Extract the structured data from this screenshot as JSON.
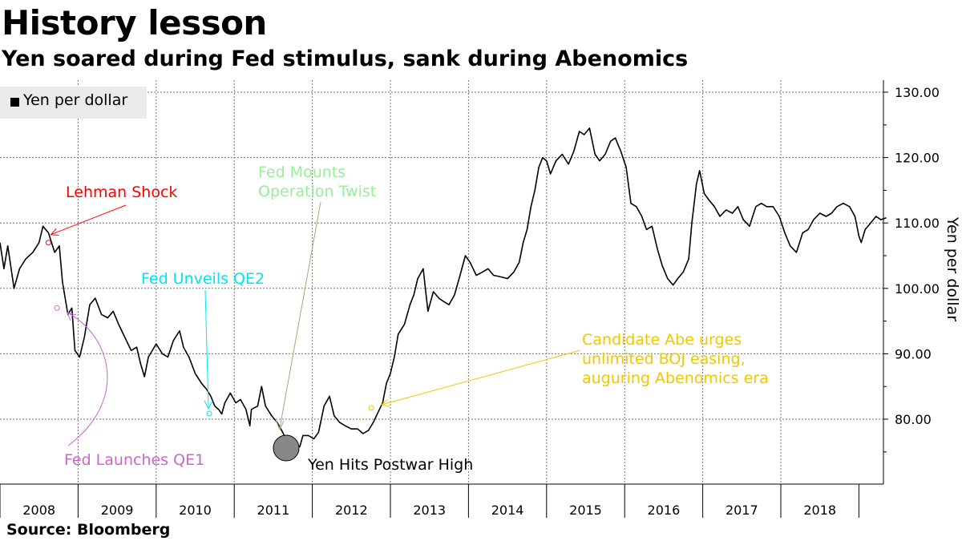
{
  "header": {
    "title": "History lesson",
    "subtitle": "Yen soared during Fed stimulus, sank during Abenomics"
  },
  "footer": {
    "source": "Source: Bloomberg"
  },
  "colors": {
    "line": "#000000",
    "grid": "#777777",
    "lehman": "#ff0000",
    "qe1": "#cc66cc",
    "qe2": "#00e5ee",
    "twist": "#99ee99",
    "twist_arrow": "#a8a878",
    "abe": "#f0c800",
    "postwar_fill": "#888888"
  },
  "chart_data": {
    "type": "line",
    "title": "History lesson",
    "subtitle": "Yen soared during Fed stimulus, sank during Abenomics",
    "ylabel": "Yen per dollar",
    "xlabel": "",
    "ylim": [
      70,
      131
    ],
    "xlim": [
      2008.0,
      2019.35
    ],
    "yticks": [
      80,
      90,
      100,
      110,
      120,
      130
    ],
    "ytick_labels": [
      "80.00",
      "90.00",
      "100.00",
      "110.00",
      "120.00",
      "130.00"
    ],
    "xtick_labels": [
      "2008",
      "2009",
      "2010",
      "2011",
      "2012",
      "2013",
      "2014",
      "2015",
      "2016",
      "2017",
      "2018"
    ],
    "grid": true,
    "legend": {
      "position": "top-left",
      "entries": [
        "Yen per dollar"
      ]
    },
    "series": [
      {
        "name": "Yen per dollar",
        "points": [
          [
            2008.0,
            107.0
          ],
          [
            2008.05,
            103.0
          ],
          [
            2008.1,
            106.5
          ],
          [
            2008.18,
            100.0
          ],
          [
            2008.25,
            103.0
          ],
          [
            2008.33,
            104.5
          ],
          [
            2008.42,
            105.5
          ],
          [
            2008.5,
            107.0
          ],
          [
            2008.55,
            109.5
          ],
          [
            2008.62,
            108.5
          ],
          [
            2008.7,
            105.5
          ],
          [
            2008.76,
            106.5
          ],
          [
            2008.8,
            101.0
          ],
          [
            2008.87,
            96.0
          ],
          [
            2008.92,
            97.0
          ],
          [
            2008.96,
            90.5
          ],
          [
            2009.02,
            89.5
          ],
          [
            2009.08,
            92.5
          ],
          [
            2009.15,
            97.5
          ],
          [
            2009.22,
            98.5
          ],
          [
            2009.3,
            96.0
          ],
          [
            2009.38,
            95.5
          ],
          [
            2009.45,
            96.5
          ],
          [
            2009.52,
            94.5
          ],
          [
            2009.6,
            92.5
          ],
          [
            2009.68,
            90.5
          ],
          [
            2009.75,
            91.0
          ],
          [
            2009.8,
            88.5
          ],
          [
            2009.85,
            86.5
          ],
          [
            2009.9,
            89.5
          ],
          [
            2010.0,
            91.5
          ],
          [
            2010.08,
            90.0
          ],
          [
            2010.15,
            89.5
          ],
          [
            2010.22,
            92.0
          ],
          [
            2010.3,
            93.5
          ],
          [
            2010.35,
            91.0
          ],
          [
            2010.42,
            89.5
          ],
          [
            2010.5,
            87.0
          ],
          [
            2010.58,
            85.5
          ],
          [
            2010.65,
            84.5
          ],
          [
            2010.7,
            83.5
          ],
          [
            2010.75,
            82.0
          ],
          [
            2010.8,
            81.5
          ],
          [
            2010.84,
            80.8
          ],
          [
            2010.88,
            82.5
          ],
          [
            2010.95,
            84.0
          ],
          [
            2011.02,
            82.5
          ],
          [
            2011.08,
            83.0
          ],
          [
            2011.15,
            81.5
          ],
          [
            2011.2,
            79.0
          ],
          [
            2011.22,
            81.5
          ],
          [
            2011.3,
            82.0
          ],
          [
            2011.35,
            85.0
          ],
          [
            2011.4,
            82.0
          ],
          [
            2011.48,
            80.5
          ],
          [
            2011.55,
            79.5
          ],
          [
            2011.62,
            78.0
          ],
          [
            2011.68,
            76.5
          ],
          [
            2011.75,
            77.0
          ],
          [
            2011.8,
            76.0
          ],
          [
            2011.84,
            75.8
          ],
          [
            2011.88,
            77.5
          ],
          [
            2011.95,
            77.5
          ],
          [
            2012.02,
            77.0
          ],
          [
            2012.08,
            78.0
          ],
          [
            2012.15,
            82.0
          ],
          [
            2012.22,
            83.5
          ],
          [
            2012.28,
            80.5
          ],
          [
            2012.35,
            79.5
          ],
          [
            2012.42,
            79.0
          ],
          [
            2012.5,
            78.5
          ],
          [
            2012.58,
            78.5
          ],
          [
            2012.65,
            77.8
          ],
          [
            2012.72,
            78.3
          ],
          [
            2012.78,
            79.5
          ],
          [
            2012.84,
            81.0
          ],
          [
            2012.9,
            82.5
          ],
          [
            2012.95,
            85.5
          ],
          [
            2013.0,
            87.0
          ],
          [
            2013.05,
            89.5
          ],
          [
            2013.1,
            93.0
          ],
          [
            2013.18,
            94.5
          ],
          [
            2013.25,
            97.5
          ],
          [
            2013.3,
            99.0
          ],
          [
            2013.35,
            101.5
          ],
          [
            2013.42,
            103.0
          ],
          [
            2013.48,
            96.5
          ],
          [
            2013.55,
            99.5
          ],
          [
            2013.62,
            98.5
          ],
          [
            2013.68,
            98.0
          ],
          [
            2013.75,
            97.5
          ],
          [
            2013.82,
            99.0
          ],
          [
            2013.88,
            101.5
          ],
          [
            2013.96,
            105.0
          ],
          [
            2014.02,
            104.0
          ],
          [
            2014.1,
            102.0
          ],
          [
            2014.18,
            102.5
          ],
          [
            2014.25,
            103.0
          ],
          [
            2014.32,
            102.0
          ],
          [
            2014.4,
            101.8
          ],
          [
            2014.5,
            101.5
          ],
          [
            2014.58,
            102.5
          ],
          [
            2014.65,
            104.0
          ],
          [
            2014.7,
            107.0
          ],
          [
            2014.75,
            109.0
          ],
          [
            2014.8,
            112.5
          ],
          [
            2014.85,
            115.0
          ],
          [
            2014.9,
            118.5
          ],
          [
            2014.95,
            120.0
          ],
          [
            2015.0,
            119.5
          ],
          [
            2015.05,
            117.5
          ],
          [
            2015.12,
            119.5
          ],
          [
            2015.2,
            120.5
          ],
          [
            2015.28,
            119.0
          ],
          [
            2015.35,
            121.0
          ],
          [
            2015.42,
            124.0
          ],
          [
            2015.48,
            123.5
          ],
          [
            2015.55,
            124.5
          ],
          [
            2015.62,
            120.5
          ],
          [
            2015.68,
            119.5
          ],
          [
            2015.75,
            120.5
          ],
          [
            2015.82,
            122.5
          ],
          [
            2015.88,
            123.0
          ],
          [
            2015.95,
            121.0
          ],
          [
            2016.02,
            118.5
          ],
          [
            2016.08,
            113.0
          ],
          [
            2016.15,
            112.5
          ],
          [
            2016.22,
            111.0
          ],
          [
            2016.28,
            109.0
          ],
          [
            2016.35,
            109.5
          ],
          [
            2016.42,
            106.0
          ],
          [
            2016.48,
            103.5
          ],
          [
            2016.55,
            101.5
          ],
          [
            2016.62,
            100.5
          ],
          [
            2016.68,
            101.5
          ],
          [
            2016.75,
            102.5
          ],
          [
            2016.82,
            104.5
          ],
          [
            2016.86,
            110.0
          ],
          [
            2016.92,
            116.0
          ],
          [
            2016.96,
            118.0
          ],
          [
            2017.02,
            114.5
          ],
          [
            2017.08,
            113.5
          ],
          [
            2017.15,
            112.5
          ],
          [
            2017.22,
            111.0
          ],
          [
            2017.3,
            112.0
          ],
          [
            2017.38,
            111.5
          ],
          [
            2017.45,
            112.5
          ],
          [
            2017.52,
            110.5
          ],
          [
            2017.6,
            109.5
          ],
          [
            2017.68,
            112.5
          ],
          [
            2017.75,
            113.0
          ],
          [
            2017.82,
            112.5
          ],
          [
            2017.9,
            112.5
          ],
          [
            2017.98,
            111.0
          ],
          [
            2018.05,
            108.5
          ],
          [
            2018.12,
            106.5
          ],
          [
            2018.2,
            105.5
          ],
          [
            2018.28,
            108.5
          ],
          [
            2018.35,
            109.0
          ],
          [
            2018.42,
            110.5
          ],
          [
            2018.5,
            111.5
          ],
          [
            2018.58,
            111.0
          ],
          [
            2018.65,
            111.5
          ],
          [
            2018.72,
            112.5
          ],
          [
            2018.8,
            113.0
          ],
          [
            2018.88,
            112.5
          ],
          [
            2018.95,
            111.0
          ],
          [
            2019.0,
            108.0
          ],
          [
            2019.03,
            107.0
          ],
          [
            2019.08,
            109.0
          ],
          [
            2019.15,
            110.0
          ],
          [
            2019.22,
            111.0
          ],
          [
            2019.28,
            110.5
          ],
          [
            2019.35,
            110.8
          ]
        ]
      }
    ],
    "annotations": [
      {
        "id": "lehman",
        "text": [
          "Lehman Shock"
        ],
        "color_key": "lehman",
        "x": 2008.71,
        "y": 107.0
      },
      {
        "id": "qe1",
        "text": [
          "Fed Launches QE1"
        ],
        "color_key": "qe1",
        "x": 2008.96,
        "y": 97.0
      },
      {
        "id": "qe2",
        "text": [
          "Fed Unveils QE2"
        ],
        "color_key": "qe2",
        "x": 2010.84,
        "y": 81.0
      },
      {
        "id": "twist",
        "text": [
          "Fed Mounts",
          "Operation Twist"
        ],
        "color_key": "twist",
        "x": 2011.72,
        "y": 78.0
      },
      {
        "id": "postwar",
        "text": [
          "Yen Hits Postwar High"
        ],
        "color_key": "line",
        "x": 2011.84,
        "y": 75.8
      },
      {
        "id": "abe",
        "text": [
          "Candidate Abe urges",
          "unlimited BOJ easing,",
          "auguring Abenomics era"
        ],
        "color_key": "abe",
        "x": 2012.88,
        "y": 82.0
      }
    ]
  }
}
